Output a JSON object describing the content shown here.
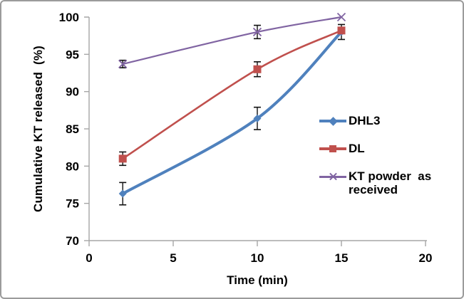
{
  "chart_data": {
    "type": "line",
    "title": "",
    "xlabel": "Time (min)",
    "ylabel": "Cumulative KT released  (%)",
    "xlim": [
      0,
      20
    ],
    "ylim": [
      70,
      100
    ],
    "x_ticks": [
      0,
      5,
      10,
      15,
      20
    ],
    "y_ticks": [
      70,
      75,
      80,
      85,
      90,
      95,
      100
    ],
    "grid": false,
    "smoothed_lines": true,
    "legend_position": "middle-right",
    "axis_color": "#a6a6a6",
    "error_bar_color": "#111111",
    "text_color": "#000000",
    "series": [
      {
        "name": "DHL3",
        "color": "#4F81BD",
        "marker": "diamond",
        "line_width": 4,
        "points": [
          {
            "x": 2,
            "y": 76.3,
            "err": 1.5
          },
          {
            "x": 10,
            "y": 86.4,
            "err": 1.5
          },
          {
            "x": 15,
            "y": 98.0,
            "err": 1.0
          }
        ]
      },
      {
        "name": "DL",
        "color": "#C0504D",
        "marker": "square",
        "line_width": 2.6,
        "points": [
          {
            "x": 2,
            "y": 81.0,
            "err": 0.9
          },
          {
            "x": 10,
            "y": 93.0,
            "err": 1.0
          },
          {
            "x": 15,
            "y": 98.2,
            "err": 0
          }
        ]
      },
      {
        "name": "KT powder  as\nreceived",
        "color": "#8064A2",
        "marker": "x",
        "line_width": 2.2,
        "points": [
          {
            "x": 2,
            "y": 93.7,
            "err": 0.5
          },
          {
            "x": 10,
            "y": 98.0,
            "err": 0.9
          },
          {
            "x": 15,
            "y": 100.0,
            "err": 0
          }
        ]
      }
    ]
  }
}
